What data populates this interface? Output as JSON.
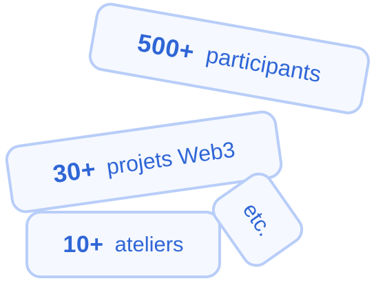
{
  "stats": [
    {
      "number": "500+",
      "label": "participants"
    },
    {
      "number": "30+",
      "label": "projets Web3"
    },
    {
      "number": "10+",
      "label": "ateliers"
    }
  ],
  "etc_label": "etc.",
  "colors": {
    "text_accent": "#2f66d6",
    "card_border": "#b8cdf8",
    "card_background": "#f5f8ff"
  }
}
